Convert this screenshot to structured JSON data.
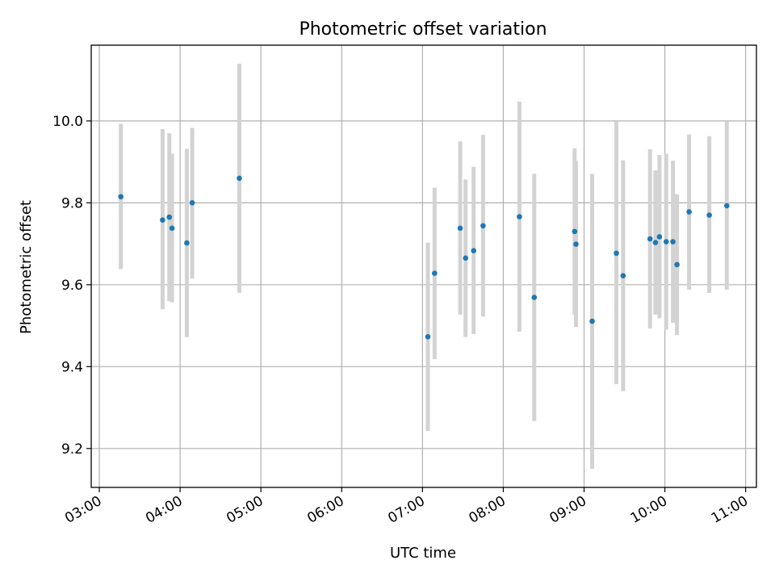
{
  "chart_data": {
    "type": "scatter",
    "title": "Photometric offset variation",
    "xlabel": "UTC time",
    "ylabel": "Photometric offset",
    "x_tick_labels": [
      "03:00",
      "04:00",
      "05:00",
      "06:00",
      "07:00",
      "08:00",
      "09:00",
      "10:00",
      "11:00"
    ],
    "y_tick_labels": [
      "9.2",
      "9.4",
      "9.6",
      "9.8",
      "10.0"
    ],
    "xlim": [
      "02:54",
      "11:08"
    ],
    "ylim": [
      9.105,
      10.185
    ],
    "grid": true,
    "marker_color": "#1f77b4",
    "errorbar_color": "#d3d3d3",
    "points": [
      {
        "x": "03:16",
        "y": 9.815,
        "lo": 9.638,
        "hi": 9.993
      },
      {
        "x": "03:47",
        "y": 9.758,
        "lo": 9.54,
        "hi": 9.98
      },
      {
        "x": "03:52",
        "y": 9.765,
        "lo": 9.56,
        "hi": 9.97
      },
      {
        "x": "03:54",
        "y": 9.738,
        "lo": 9.557,
        "hi": 9.92
      },
      {
        "x": "04:05",
        "y": 9.702,
        "lo": 9.472,
        "hi": 9.932
      },
      {
        "x": "04:09",
        "y": 9.8,
        "lo": 9.615,
        "hi": 9.983
      },
      {
        "x": "04:44",
        "y": 9.86,
        "lo": 9.58,
        "hi": 10.14
      },
      {
        "x": "07:04",
        "y": 9.473,
        "lo": 9.243,
        "hi": 9.703
      },
      {
        "x": "07:09",
        "y": 9.628,
        "lo": 9.418,
        "hi": 9.837
      },
      {
        "x": "07:28",
        "y": 9.738,
        "lo": 9.527,
        "hi": 9.95
      },
      {
        "x": "07:32",
        "y": 9.665,
        "lo": 9.472,
        "hi": 9.857
      },
      {
        "x": "07:38",
        "y": 9.683,
        "lo": 9.48,
        "hi": 9.888
      },
      {
        "x": "07:45",
        "y": 9.744,
        "lo": 9.522,
        "hi": 9.966
      },
      {
        "x": "08:12",
        "y": 9.766,
        "lo": 9.485,
        "hi": 10.047
      },
      {
        "x": "08:23",
        "y": 9.569,
        "lo": 9.267,
        "hi": 9.871
      },
      {
        "x": "08:53",
        "y": 9.73,
        "lo": 9.527,
        "hi": 9.933
      },
      {
        "x": "08:54",
        "y": 9.699,
        "lo": 9.497,
        "hi": 9.902
      },
      {
        "x": "09:06",
        "y": 9.511,
        "lo": 9.15,
        "hi": 9.871
      },
      {
        "x": "09:24",
        "y": 9.677,
        "lo": 9.357,
        "hi": 9.998
      },
      {
        "x": "09:29",
        "y": 9.622,
        "lo": 9.34,
        "hi": 9.904
      },
      {
        "x": "09:49",
        "y": 9.712,
        "lo": 9.493,
        "hi": 9.931
      },
      {
        "x": "09:53",
        "y": 9.703,
        "lo": 9.527,
        "hi": 9.879
      },
      {
        "x": "09:56",
        "y": 9.717,
        "lo": 9.518,
        "hi": 9.917
      },
      {
        "x": "10:01",
        "y": 9.705,
        "lo": 9.49,
        "hi": 9.92
      },
      {
        "x": "10:06",
        "y": 9.705,
        "lo": 9.507,
        "hi": 9.903
      },
      {
        "x": "10:09",
        "y": 9.649,
        "lo": 9.477,
        "hi": 9.821
      },
      {
        "x": "10:18",
        "y": 9.778,
        "lo": 9.588,
        "hi": 9.967
      },
      {
        "x": "10:33",
        "y": 9.77,
        "lo": 9.58,
        "hi": 9.963
      },
      {
        "x": "10:46",
        "y": 9.793,
        "lo": 9.588,
        "hi": 9.998
      }
    ]
  }
}
